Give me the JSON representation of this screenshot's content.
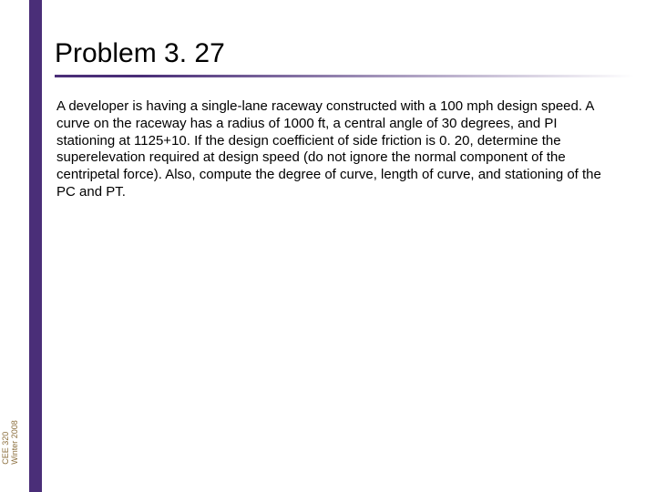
{
  "slide": {
    "title": "Problem 3. 27",
    "body": "A developer is having a single-lane raceway constructed with a 100 mph design speed.  A curve on the raceway has a radius of 1000 ft, a central angle of 30 degrees, and PI stationing at 1125+10.  If the design coefficient of side friction is 0. 20, determine the superelevation required at design speed (do not ignore the normal component of the centripetal force).  Also, compute the degree of curve, length of curve, and stationing of the PC and PT.",
    "footer": {
      "line1": "CEE 320",
      "line2": "Winter 2008"
    },
    "colors": {
      "accent": "#4a2e78",
      "footer_text": "#8a6d3b",
      "background": "#ffffff",
      "text": "#000000"
    },
    "typography": {
      "title_fontsize": 30,
      "body_fontsize": 15,
      "footer_fontsize": 9
    }
  }
}
